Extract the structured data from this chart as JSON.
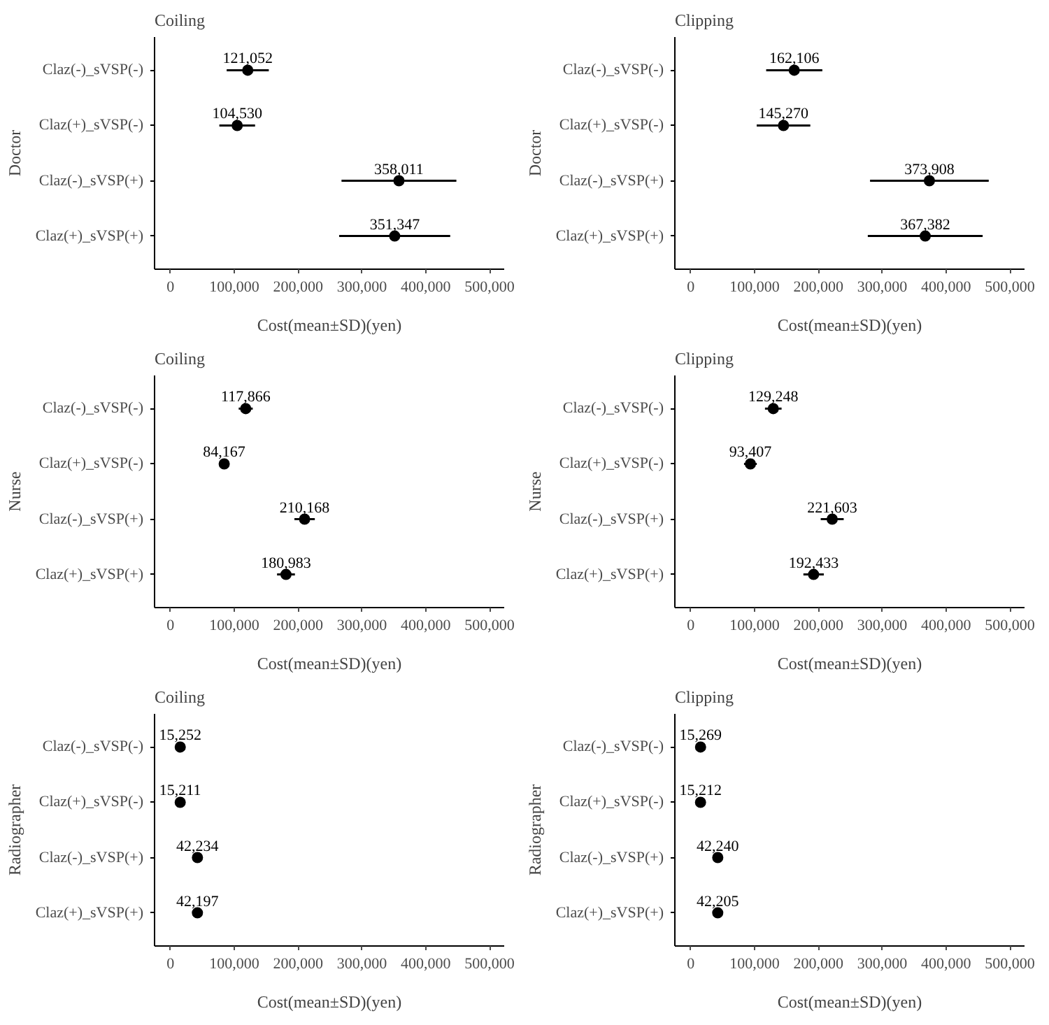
{
  "chart_data": [
    {
      "type": "scatter",
      "orientation": "horizontal",
      "title": "Coiling",
      "ylabel": "Doctor",
      "xlabel": "Cost(mean±SD)(yen)",
      "categories": [
        "Claz(-)_sVSP(-)",
        "Claz(+)_sVSP(-)",
        "Claz(-)_sVSP(+)",
        "Claz(+)_sVSP(+)"
      ],
      "values": [
        121052,
        104530,
        358011,
        351347
      ],
      "value_labels": [
        "121,052",
        "104,530",
        "358,011",
        "351,347"
      ],
      "errors": [
        33000,
        28000,
        90000,
        87000
      ],
      "color": "#000000",
      "marker": "circle",
      "grid": false,
      "xlim": [
        -25000,
        523000
      ],
      "xticks": [
        0,
        {
          "value": 100000,
          "label": "100,000"
        },
        {
          "value": 200000,
          "label": "200,000"
        },
        {
          "value": 300000,
          "label": "300,000"
        },
        {
          "value": 400000,
          "label": "400,000"
        },
        {
          "value": 500000,
          "label": "500,000"
        }
      ]
    },
    {
      "type": "scatter",
      "orientation": "horizontal",
      "title": "Clipping",
      "ylabel": "Doctor",
      "xlabel": "Cost(mean±SD)(yen)",
      "categories": [
        "Claz(-)_sVSP(-)",
        "Claz(+)_sVSP(-)",
        "Claz(-)_sVSP(+)",
        "Claz(+)_sVSP(+)"
      ],
      "values": [
        162106,
        145270,
        373908,
        367382
      ],
      "value_labels": [
        "162,106",
        "145,270",
        "373,908",
        "367,382"
      ],
      "errors": [
        44000,
        42000,
        93000,
        90000
      ],
      "color": "#000000",
      "marker": "circle",
      "grid": false,
      "xlim": [
        -25000,
        523000
      ],
      "xticks": [
        0,
        {
          "value": 100000,
          "label": "100,000"
        },
        {
          "value": 200000,
          "label": "200,000"
        },
        {
          "value": 300000,
          "label": "300,000"
        },
        {
          "value": 400000,
          "label": "400,000"
        },
        {
          "value": 500000,
          "label": "500,000"
        }
      ]
    },
    {
      "type": "scatter",
      "orientation": "horizontal",
      "title": "Coiling",
      "ylabel": "Nurse",
      "xlabel": "Cost(mean±SD)(yen)",
      "categories": [
        "Claz(-)_sVSP(-)",
        "Claz(+)_sVSP(-)",
        "Claz(-)_sVSP(+)",
        "Claz(+)_sVSP(+)"
      ],
      "values": [
        117866,
        84167,
        210168,
        180983
      ],
      "value_labels": [
        "117,866",
        "84,167",
        "210,168",
        "180,983"
      ],
      "errors": [
        11000,
        8000,
        16000,
        14000
      ],
      "color": "#000000",
      "marker": "circle",
      "grid": false,
      "xlim": [
        -25000,
        523000
      ],
      "xticks": [
        0,
        {
          "value": 100000,
          "label": "100,000"
        },
        {
          "value": 200000,
          "label": "200,000"
        },
        {
          "value": 300000,
          "label": "300,000"
        },
        {
          "value": 400000,
          "label": "400,000"
        },
        {
          "value": 500000,
          "label": "500,000"
        }
      ]
    },
    {
      "type": "scatter",
      "orientation": "horizontal",
      "title": "Clipping",
      "ylabel": "Nurse",
      "xlabel": "Cost(mean±SD)(yen)",
      "categories": [
        "Claz(-)_sVSP(-)",
        "Claz(+)_sVSP(-)",
        "Claz(-)_sVSP(+)",
        "Claz(+)_sVSP(+)"
      ],
      "values": [
        129248,
        93407,
        221603,
        192433
      ],
      "value_labels": [
        "129,248",
        "93,407",
        "221,603",
        "192,433"
      ],
      "errors": [
        13000,
        10000,
        18000,
        16000
      ],
      "color": "#000000",
      "marker": "circle",
      "grid": false,
      "xlim": [
        -25000,
        523000
      ],
      "xticks": [
        0,
        {
          "value": 100000,
          "label": "100,000"
        },
        {
          "value": 200000,
          "label": "200,000"
        },
        {
          "value": 300000,
          "label": "300,000"
        },
        {
          "value": 400000,
          "label": "400,000"
        },
        {
          "value": 500000,
          "label": "500,000"
        }
      ]
    },
    {
      "type": "scatter",
      "orientation": "horizontal",
      "title": "Coiling",
      "ylabel": "Radiographer",
      "xlabel": "Cost(mean±SD)(yen)",
      "categories": [
        "Claz(-)_sVSP(-)",
        "Claz(+)_sVSP(-)",
        "Claz(-)_sVSP(+)",
        "Claz(+)_sVSP(+)"
      ],
      "values": [
        15252,
        15211,
        42234,
        42197
      ],
      "value_labels": [
        "15,252",
        "15,211",
        "42,234",
        "42,197"
      ],
      "color": "#000000",
      "marker": "circle",
      "grid": false,
      "xlim": [
        -25000,
        523000
      ],
      "xticks": [
        0,
        {
          "value": 100000,
          "label": "100,000"
        },
        {
          "value": 200000,
          "label": "200,000"
        },
        {
          "value": 300000,
          "label": "300,000"
        },
        {
          "value": 400000,
          "label": "400,000"
        },
        {
          "value": 500000,
          "label": "500,000"
        }
      ]
    },
    {
      "type": "scatter",
      "orientation": "horizontal",
      "title": "Clipping",
      "ylabel": "Radiographer",
      "xlabel": "Cost(mean±SD)(yen)",
      "categories": [
        "Claz(-)_sVSP(-)",
        "Claz(+)_sVSP(-)",
        "Claz(-)_sVSP(+)",
        "Claz(+)_sVSP(+)"
      ],
      "values": [
        15269,
        15212,
        42240,
        42205
      ],
      "value_labels": [
        "15,269",
        "15,212",
        "42,240",
        "42,205"
      ],
      "color": "#000000",
      "marker": "circle",
      "grid": false,
      "xlim": [
        -25000,
        523000
      ],
      "xticks": [
        0,
        {
          "value": 100000,
          "label": "100,000"
        },
        {
          "value": 200000,
          "label": "200,000"
        },
        {
          "value": 300000,
          "label": "300,000"
        },
        {
          "value": 400000,
          "label": "400,000"
        },
        {
          "value": 500000,
          "label": "500,000"
        }
      ]
    }
  ]
}
